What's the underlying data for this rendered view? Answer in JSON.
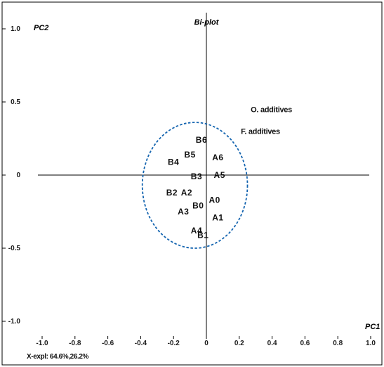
{
  "chart_data": {
    "type": "scatter",
    "title": "Bi-plot",
    "xlabel": "PC1",
    "ylabel": "PC2",
    "explained_variance_text": "X-expl: 64.6%,26.2%",
    "xlim": [
      -1.05,
      1.05
    ],
    "ylim": [
      -1.08,
      1.08
    ],
    "x_ticks": [
      {
        "value": -1.0,
        "label": "-1.0"
      },
      {
        "value": -0.8,
        "label": "-0.8"
      },
      {
        "value": -0.6,
        "label": "-0.6"
      },
      {
        "value": -0.4,
        "label": "-0.4"
      },
      {
        "value": -0.2,
        "label": "-0.2"
      },
      {
        "value": 0.0,
        "label": "0"
      },
      {
        "value": 0.2,
        "label": "0.2"
      },
      {
        "value": 0.4,
        "label": "0.4"
      },
      {
        "value": 0.6,
        "label": "0.6"
      },
      {
        "value": 0.8,
        "label": "0.8"
      },
      {
        "value": 1.0,
        "label": "1.0"
      }
    ],
    "y_ticks": [
      {
        "value": 1.0,
        "label": "1.0"
      },
      {
        "value": 0.5,
        "label": "0.5"
      },
      {
        "value": 0.0,
        "label": "0"
      },
      {
        "value": -0.5,
        "label": "-0.5"
      },
      {
        "value": -1.0,
        "label": "-1.0"
      }
    ],
    "grid": false,
    "samples": [
      {
        "name": "B6",
        "x": -0.03,
        "y": 0.24
      },
      {
        "name": "B5",
        "x": -0.1,
        "y": 0.14
      },
      {
        "name": "A6",
        "x": 0.07,
        "y": 0.12
      },
      {
        "name": "B4",
        "x": -0.2,
        "y": 0.09
      },
      {
        "name": "B3",
        "x": -0.06,
        "y": -0.01
      },
      {
        "name": "A5",
        "x": 0.08,
        "y": 0.0
      },
      {
        "name": "B2",
        "x": -0.21,
        "y": -0.12
      },
      {
        "name": "A2",
        "x": -0.12,
        "y": -0.12
      },
      {
        "name": "A0",
        "x": 0.05,
        "y": -0.17
      },
      {
        "name": "B0",
        "x": -0.05,
        "y": -0.21
      },
      {
        "name": "A3",
        "x": -0.14,
        "y": -0.25
      },
      {
        "name": "A1",
        "x": 0.07,
        "y": -0.29
      },
      {
        "name": "A4",
        "x": -0.06,
        "y": -0.38
      },
      {
        "name": "B1",
        "x": -0.02,
        "y": -0.41
      }
    ],
    "variables": [
      {
        "name": "O. additives",
        "x": 0.27,
        "y": 0.45
      },
      {
        "name": "F. additives",
        "x": 0.21,
        "y": 0.3
      }
    ],
    "ellipse": {
      "cx": -0.07,
      "cy": -0.07,
      "rx": 0.32,
      "ry": 0.43
    },
    "colors": {
      "ellipse": "#1565b0",
      "axes": "#000000",
      "frame": "#000000",
      "text": "#111111"
    }
  }
}
